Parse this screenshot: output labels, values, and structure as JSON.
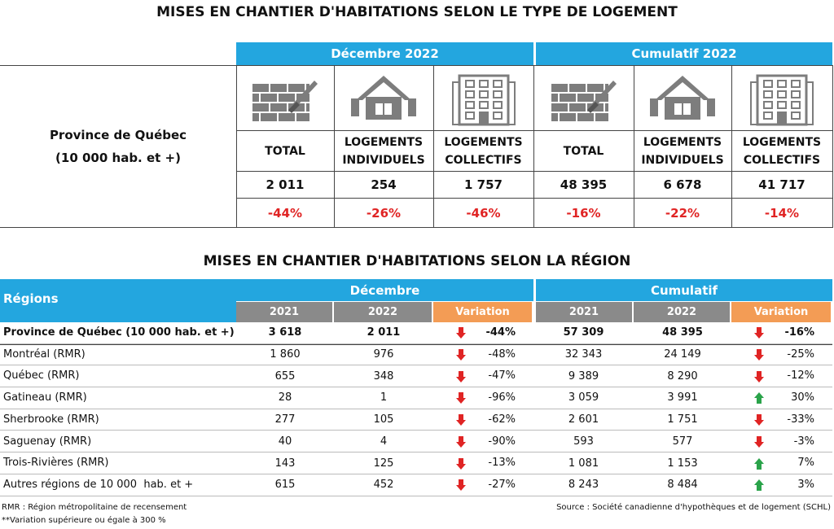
{
  "title1": "MISES EN CHANTIER D'HABITATIONS SELON LE TYPE DE LOGEMENT",
  "summary": {
    "row_label": [
      "Province de Québec",
      "(10 000 hab. et +)"
    ],
    "groups": [
      "Décembre 2022",
      "Cumulatif 2022"
    ],
    "columns": [
      {
        "label": [
          "TOTAL"
        ],
        "value": "2 011",
        "variation": "-44%"
      },
      {
        "label": [
          "LOGEMENTS",
          "INDIVIDUELS"
        ],
        "value": "254",
        "variation": "-26%"
      },
      {
        "label": [
          "LOGEMENTS",
          "COLLECTIFS"
        ],
        "value": "1 757",
        "variation": "-46%"
      },
      {
        "label": [
          "TOTAL"
        ],
        "value": "48 395",
        "variation": "-16%"
      },
      {
        "label": [
          "LOGEMENTS",
          "INDIVIDUELS"
        ],
        "value": "6 678",
        "variation": "-22%"
      },
      {
        "label": [
          "LOGEMENTS",
          "COLLECTIFS"
        ],
        "value": "41 717",
        "variation": "-14%"
      }
    ]
  },
  "title2": "MISES EN CHANTIER D'HABITATIONS SELON LA RÉGION",
  "regions": {
    "header": "Régions",
    "groups": [
      "Décembre",
      "Cumulatif"
    ],
    "subheaders": [
      "2021",
      "2022",
      "Variation",
      "2021",
      "2022",
      "Variation"
    ],
    "rows": [
      [
        "Province de Québec (10 000 hab. et +)",
        "3 618",
        "2 011",
        "-44%",
        "57 309",
        "48 395",
        "-16%"
      ],
      [
        "Montréal (RMR)",
        "1 860",
        "976",
        "-48%",
        "32 343",
        "24 149",
        "-25%"
      ],
      [
        "Québec (RMR)",
        "655",
        "348",
        "-47%",
        "9 389",
        "8 290",
        "-12%"
      ],
      [
        "Gatineau (RMR)",
        "28",
        "1",
        "-96%",
        "3 059",
        "3 991",
        "30%"
      ],
      [
        "Sherbrooke (RMR)",
        "277",
        "105",
        "-62%",
        "2 601",
        "1 751",
        "-33%"
      ],
      [
        "Saguenay (RMR)",
        "40",
        "4",
        "-90%",
        "593",
        "577",
        "-3%"
      ],
      [
        "Trois-Rivières (RMR)",
        "143",
        "125",
        "-13%",
        "1 081",
        "1 153",
        "7%"
      ],
      [
        "Autres régions de 10 000  hab. et +",
        "615",
        "452",
        "-27%",
        "8 243",
        "8 484",
        "3%"
      ]
    ]
  },
  "footnotes": {
    "left": [
      "RMR : Région métropolitaine de recensement",
      "**Variation supérieure ou égale à 300 %"
    ],
    "right": "Source : Société canadienne d'hypothèques et de logement (SCHL)"
  }
}
